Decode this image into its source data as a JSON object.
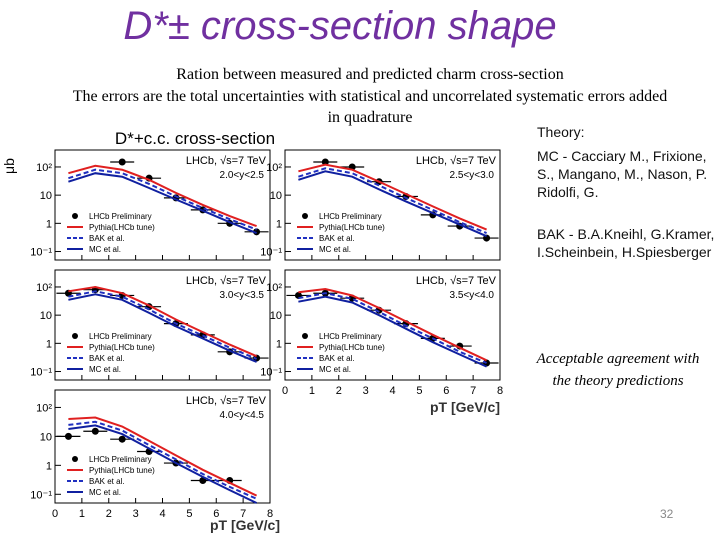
{
  "title": "D*± cross-section shape",
  "subtitle": [
    "Ration between measured and predicted charm cross-section",
    "The errors are the total uncertainties with statistical and uncorrelated systematic errors added",
    "in quadrature"
  ],
  "theory": {
    "heading": "Theory:",
    "mc": "MC - Cacciary M., Frixione, S., Mangano, M., Nason, P. Ridolfi, G.",
    "bak": "BAK - B.A.Kneihl, G.Kramer, I.Scheinbein, H.Spiesberger"
  },
  "conclusion": "Acceptable agreement with the theory predictions",
  "page_number": "32",
  "chart_data": {
    "type": "line",
    "title": "D*+c.c. cross-section",
    "ylabel": "μb",
    "xlabel": "pT [GeV/c]",
    "log_y": true,
    "ylim": [
      0.05,
      400
    ],
    "yticks": [
      {
        "value": 0.1,
        "label": "10⁻¹"
      },
      1,
      10,
      {
        "value": 100,
        "label": "10²"
      }
    ],
    "xlim": [
      0,
      8
    ],
    "xticks": [
      0,
      1,
      2,
      3,
      4,
      5,
      6,
      7,
      8
    ],
    "experiment": "LHCb, √s=7 TeV",
    "x": [
      0.5,
      1.5,
      2.5,
      3.5,
      4.5,
      5.5,
      6.5,
      7.5
    ],
    "panels": [
      {
        "range": "2.0<y<2.5",
        "series": [
          {
            "name": "LHCb Preliminary",
            "color": "#000000",
            "values": [
              null,
              null,
              150,
              40,
              8,
              3,
              1,
              0.5
            ]
          },
          {
            "name": "Pythia(LHCb tune)",
            "color": "#e02020",
            "values": [
              60,
              110,
              80,
              35,
              12,
              4.5,
              1.8,
              0.8
            ]
          },
          {
            "name": "BAK et al.",
            "color": "#2030c0",
            "values": [
              40,
              80,
              60,
              25,
              9,
              3.5,
              1.4,
              0.6
            ]
          },
          {
            "name": "MC et al.",
            "color": "#1020a0",
            "values": [
              30,
              60,
              45,
              18,
              7,
              2.8,
              1.1,
              0.45
            ]
          }
        ]
      },
      {
        "range": "2.5<y<3.0",
        "series": [
          {
            "name": "LHCb Preliminary",
            "color": "#000000",
            "values": [
              null,
              150,
              100,
              30,
              9,
              2,
              0.8,
              0.3
            ]
          },
          {
            "name": "Pythia(LHCb tune)",
            "color": "#e02020",
            "values": [
              70,
              120,
              80,
              30,
              11,
              4,
              1.5,
              0.6
            ]
          },
          {
            "name": "BAK et al.",
            "color": "#2030c0",
            "values": [
              45,
              90,
              60,
              22,
              8,
              3,
              1.1,
              0.45
            ]
          },
          {
            "name": "MC et al.",
            "color": "#1020a0",
            "values": [
              35,
              70,
              45,
              16,
              6,
              2.3,
              0.9,
              0.35
            ]
          }
        ]
      },
      {
        "range": "3.0<y<3.5",
        "series": [
          {
            "name": "LHCb Preliminary",
            "color": "#000000",
            "values": [
              60,
              80,
              50,
              20,
              5,
              2,
              0.5,
              0.3
            ]
          },
          {
            "name": "Pythia(LHCb tune)",
            "color": "#e02020",
            "values": [
              70,
              100,
              60,
              22,
              7,
              2.5,
              0.9,
              0.35
            ]
          },
          {
            "name": "BAK et al.",
            "color": "#2030c0",
            "values": [
              45,
              70,
              45,
              16,
              5,
              1.9,
              0.7,
              0.28
            ]
          },
          {
            "name": "MC et al.",
            "color": "#1020a0",
            "values": [
              35,
              55,
              35,
              12,
              4,
              1.5,
              0.55,
              0.22
            ]
          }
        ]
      },
      {
        "range": "3.5<y<4.0",
        "series": [
          {
            "name": "LHCb Preliminary",
            "color": "#000000",
            "values": [
              50,
              60,
              40,
              15,
              5,
              1.5,
              0.8,
              0.2
            ]
          },
          {
            "name": "Pythia(LHCb tune)",
            "color": "#e02020",
            "values": [
              65,
              85,
              50,
              18,
              6,
              2,
              0.7,
              0.25
            ]
          },
          {
            "name": "BAK et al.",
            "color": "#2030c0",
            "values": [
              40,
              60,
              38,
              13,
              4.2,
              1.5,
              0.5,
              0.2
            ]
          },
          {
            "name": "MC et al.",
            "color": "#1020a0",
            "values": [
              30,
              45,
              28,
              10,
              3.3,
              1.1,
              0.4,
              0.15
            ]
          }
        ]
      },
      {
        "range": "4.0<y<4.5",
        "series": [
          {
            "name": "LHCb Preliminary",
            "color": "#000000",
            "values": [
              10,
              15,
              8,
              3,
              1.2,
              0.3,
              0.3,
              null
            ]
          },
          {
            "name": "Pythia(LHCb tune)",
            "color": "#e02020",
            "values": [
              40,
              45,
              22,
              7,
              2.2,
              0.7,
              0.25,
              0.09
            ]
          },
          {
            "name": "BAK et al.",
            "color": "#2030c0",
            "values": [
              25,
              32,
              16,
              5,
              1.6,
              0.5,
              0.18,
              0.07
            ]
          },
          {
            "name": "MC et al.",
            "color": "#1020a0",
            "values": [
              18,
              24,
              12,
              3.8,
              1.2,
              0.4,
              0.14,
              0.05
            ]
          }
        ]
      }
    ]
  }
}
